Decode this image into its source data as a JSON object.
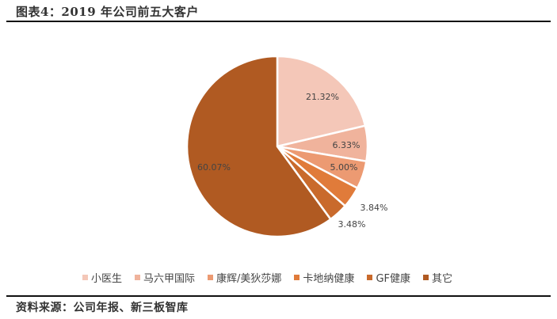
{
  "header": {
    "title": "图表4：2019 年公司前五大客户"
  },
  "footer": {
    "source": "资料来源：公司年报、新三板智库"
  },
  "chart_data": {
    "type": "pie",
    "title": "2019年公司前五大客户",
    "categories": [
      "小医生",
      "马六甲国际",
      "康辉/美狄莎娜",
      "卡地纳健康",
      "GF健康",
      "其它"
    ],
    "values": [
      21.32,
      6.33,
      5.0,
      3.84,
      3.48,
      60.07
    ],
    "labels": [
      "21.32%",
      "6.33%",
      "5.00%",
      "3.84%",
      "3.48%",
      "60.07%"
    ],
    "colors": [
      "#F4C7B8",
      "#F0B39C",
      "#EC9A72",
      "#E07B3A",
      "#C96A2C",
      "#B05A22"
    ],
    "legend_position": "bottom",
    "start_angle": "top, clockwise"
  },
  "legend": [
    {
      "label": "小医生",
      "color": "#F4C7B8"
    },
    {
      "label": "马六甲国际",
      "color": "#F0B39C"
    },
    {
      "label": "康辉/美狄莎娜",
      "color": "#EC9A72"
    },
    {
      "label": "卡地纳健康",
      "color": "#E07B3A"
    },
    {
      "label": "GF健康",
      "color": "#C96A2C"
    },
    {
      "label": "其它",
      "color": "#B05A22"
    }
  ]
}
